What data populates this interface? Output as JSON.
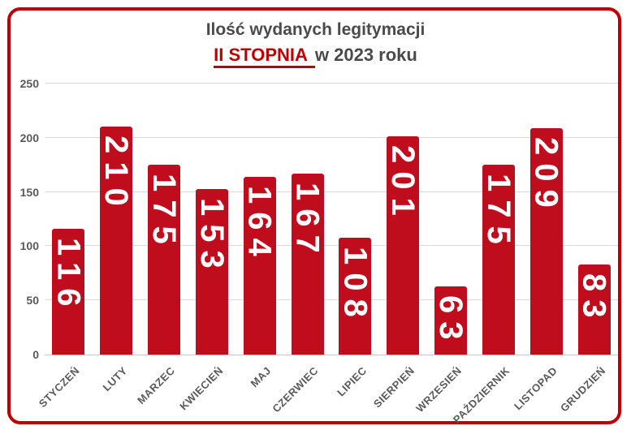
{
  "title": {
    "line1": "Ilość wydanych legitymacji",
    "line2_highlight": "II STOPNIA",
    "line2_rest": "w 2023 roku"
  },
  "colors": {
    "frame": "#C00000",
    "title_red": "#C00000",
    "title_gray": "#4A4A4A",
    "axis_gray": "#595959",
    "grid": "#D9D9D9",
    "bar": "#C00D1E",
    "value_label": "#FFFFFF"
  },
  "chart_data": {
    "type": "bar",
    "title": "Ilość wydanych legitymacji II STOPNIA w 2023 roku",
    "categories": [
      "STYCZEŃ",
      "LUTY",
      "MARZEC",
      "KWIECIEŃ",
      "MAJ",
      "CZERWIEC",
      "LIPIEC",
      "SIERPIEŃ",
      "WRZESIEŃ",
      "PAŹDZIERNIK",
      "LISTOPAD",
      "GRUDZIEŃ"
    ],
    "values": [
      116,
      210,
      175,
      153,
      164,
      167,
      108,
      201,
      63,
      175,
      209,
      83
    ],
    "xlabel": "",
    "ylabel": "",
    "ylim": [
      0,
      250
    ],
    "yticks": [
      0,
      50,
      100,
      150,
      200,
      250
    ],
    "grid": true,
    "legend": false,
    "value_labels": "rotated-vertical-inside-bar-top",
    "xtick_rotation": 45
  }
}
